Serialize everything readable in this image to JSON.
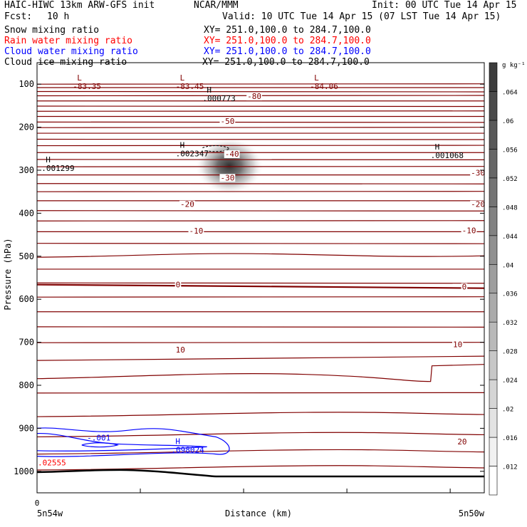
{
  "header": {
    "left1": "HAIC-HIWC 13km ARW-GFS init",
    "center1": "NCAR/MMM",
    "right1": "Init: 00 UTC Tue 14 Apr 15",
    "fcst_label": "Fcst:",
    "fcst_value": "10 h",
    "valid": "Valid: 10 UTC Tue 14 Apr 15 (07 LST Tue 14 Apr 15)",
    "fields": [
      {
        "name": "Snow mixing ratio",
        "xy": "XY= 251.0,100.0 to 284.7,100.0",
        "color": "#000000"
      },
      {
        "name": "Rain water mixing ratio",
        "xy": "XY= 251.0,100.0 to 284.7,100.0",
        "color": "#ff0000"
      },
      {
        "name": "Cloud water mixing ratio",
        "xy": "XY= 251.0,100.0 to 284.7,100.0",
        "color": "#0000ff"
      },
      {
        "name": "Cloud ice mixing ratio",
        "xy": "XY= 251.0,100.0 to 284.7,100.0",
        "color": "#000000"
      }
    ]
  },
  "chart_data": {
    "type": "contour",
    "ylabel": "Pressure (hPa)",
    "xlabel": "Distance (km)",
    "x_start_label": "5n54w",
    "x_end_label": "5n50w",
    "x_zero_label": "0",
    "y_ticks": [
      100,
      200,
      300,
      400,
      500,
      600,
      700,
      800,
      900,
      1000
    ],
    "y_range": [
      50,
      1050
    ],
    "colorbar": {
      "unit": "g kg⁻¹",
      "ticks": [
        ".012",
        ".016",
        ".02",
        ".024",
        ".028",
        ".032",
        ".036",
        ".04",
        ".044",
        ".048",
        ".052",
        ".056",
        ".06",
        ".064"
      ]
    },
    "temperature_contours": {
      "color": "#800000",
      "labels": [
        {
          "text": "-80",
          "p": 128,
          "xf": 0.47
        },
        {
          "text": "-50",
          "p": 186,
          "xf": 0.41
        },
        {
          "text": "-40",
          "p": 262,
          "xf": 0.42
        },
        {
          "text": "-30",
          "p": 317,
          "xf": 0.41
        },
        {
          "text": "-30",
          "p": 306,
          "xf": 0.97
        },
        {
          "text": "-20",
          "p": 379,
          "xf": 0.32
        },
        {
          "text": "-20",
          "p": 379,
          "xf": 0.97
        },
        {
          "text": "-10",
          "p": 441,
          "xf": 0.34
        },
        {
          "text": "-10",
          "p": 440,
          "xf": 0.95
        },
        {
          "text": "0",
          "p": 566,
          "xf": 0.31
        },
        {
          "text": "0",
          "p": 571,
          "xf": 0.95
        },
        {
          "text": "10",
          "p": 717,
          "xf": 0.31
        },
        {
          "text": "10",
          "p": 705,
          "xf": 0.93
        },
        {
          "text": "20",
          "p": 931,
          "xf": 0.94
        }
      ]
    },
    "extrema": [
      {
        "mark": "L",
        "value": "-83.35",
        "p": 95,
        "xf": 0.08,
        "color": "#800000"
      },
      {
        "mark": "L",
        "value": "-83.45",
        "p": 95,
        "xf": 0.31,
        "color": "#800000"
      },
      {
        "mark": "L",
        "value": "-84.06",
        "p": 95,
        "xf": 0.61,
        "color": "#800000"
      },
      {
        "mark": "H",
        "value": ".000773",
        "p": 123,
        "xf": 0.37,
        "color": "#000000"
      },
      {
        "mark": "H",
        "value": ".002347",
        "p": 251,
        "xf": 0.31,
        "color": "#000000"
      },
      {
        "mark": "H",
        "value": ".001299",
        "p": 285,
        "xf": 0.01,
        "color": "#000000"
      },
      {
        "mark": "H",
        "value": ".001068",
        "p": 255,
        "xf": 0.88,
        "color": "#000000"
      },
      {
        "mark": "H",
        "value": ".098024",
        "p": 940,
        "xf": 0.3,
        "color": "#0000ff"
      }
    ],
    "other_labels": [
      {
        "text": "-.001",
        "p": 922,
        "xf": 0.11,
        "color": "#0000ff"
      },
      {
        "text": ".02555",
        "p": 980,
        "xf": 0.0,
        "color": "#ff0000"
      }
    ],
    "snow_maximum": {
      "p": 290,
      "xf": 0.43,
      "value_gkg": 0.064
    }
  }
}
